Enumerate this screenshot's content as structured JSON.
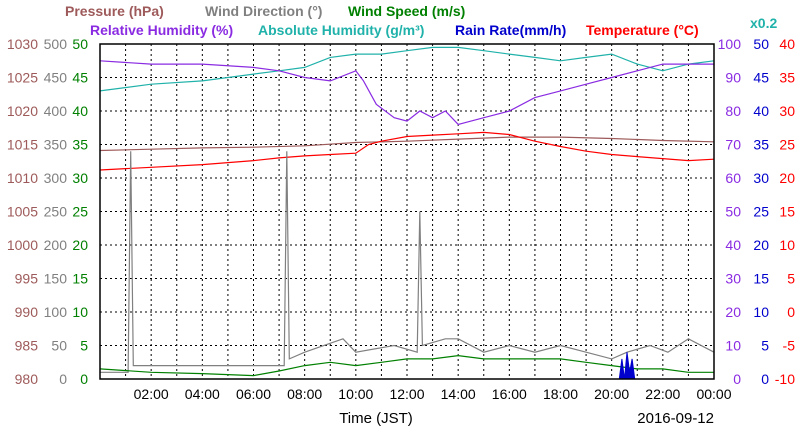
{
  "chart_data": {
    "type": "line",
    "title_rows": [
      [
        {
          "text": "Pressure (hPa)",
          "color": "#9e5a5a"
        },
        {
          "text": "Wind Direction (°)",
          "color": "#808080"
        },
        {
          "text": "Wind Speed (m/s)",
          "color": "#008000"
        }
      ],
      [
        {
          "text": "Relative Humidity (%)",
          "color": "#8a2be2"
        },
        {
          "text": "Absolute Humidity (g/m³)",
          "color": "#20b2aa"
        },
        {
          "text": "Rain Rate(mm/h)",
          "color": "#0000cc"
        },
        {
          "text": "Temperature (°C)",
          "color": "#ff0000"
        }
      ]
    ],
    "corner_note": {
      "text": "x0.2",
      "color": "#20b2aa"
    },
    "xlabel": "Time (JST)",
    "date_label": "2016-09-12",
    "x_ticks": [
      "02:00",
      "04:00",
      "06:00",
      "08:00",
      "10:00",
      "12:00",
      "14:00",
      "16:00",
      "18:00",
      "20:00",
      "22:00",
      "00:00"
    ],
    "xlim_hours": [
      0,
      24
    ],
    "left_axes": [
      {
        "name": "pressure",
        "color": "#9e5a5a",
        "range": [
          980,
          1030
        ],
        "ticks": [
          "1030",
          "1025",
          "1020",
          "1015",
          "1010",
          "1005",
          "1000",
          "995",
          "990",
          "985",
          "980"
        ]
      },
      {
        "name": "wind_direction",
        "color": "#808080",
        "range": [
          0,
          500
        ],
        "ticks": [
          "500",
          "450",
          "400",
          "350",
          "300",
          "250",
          "200",
          "150",
          "100",
          "50",
          "0"
        ]
      },
      {
        "name": "wind_speed",
        "color": "#008000",
        "range": [
          0,
          50
        ],
        "ticks": [
          "50",
          "45",
          "40",
          "35",
          "30",
          "25",
          "20",
          "15",
          "10",
          "5",
          "0"
        ]
      }
    ],
    "right_axes": [
      {
        "name": "relative_humidity",
        "color": "#8a2be2",
        "range": [
          0,
          100
        ],
        "ticks": [
          "100",
          "90",
          "80",
          "70",
          "60",
          "50",
          "40",
          "30",
          "20",
          "10",
          "0"
        ]
      },
      {
        "name": "rain_rate",
        "color": "#0000cc",
        "range": [
          0,
          50
        ],
        "ticks": [
          "50",
          "45",
          "40",
          "35",
          "30",
          "25",
          "20",
          "15",
          "10",
          "5",
          "0"
        ]
      },
      {
        "name": "temperature",
        "color": "#ff0000",
        "range": [
          -10,
          40
        ],
        "ticks": [
          "40",
          "35",
          "30",
          "25",
          "20",
          "15",
          "10",
          "5",
          "0",
          "-5",
          "-10"
        ]
      }
    ],
    "series": [
      {
        "axis": "pressure",
        "color": "#9e5a5a",
        "x": [
          0,
          2,
          4,
          6,
          8,
          10,
          12,
          14,
          16,
          18,
          20,
          22,
          24
        ],
        "y": [
          1014.1,
          1014.3,
          1014.5,
          1014.6,
          1014.8,
          1015.3,
          1015.5,
          1015.8,
          1016.1,
          1016.1,
          1015.9,
          1015.6,
          1015.4
        ]
      },
      {
        "axis": "absolute_humidity",
        "color": "#20b2aa",
        "note": "plotted on relative-humidity scale, x0.2",
        "x": [
          0,
          2,
          4,
          6,
          7,
          8,
          9,
          10,
          11,
          12,
          13,
          14,
          15,
          16,
          17,
          18,
          19,
          20,
          21,
          22,
          23,
          24
        ],
        "y": [
          86,
          88,
          89,
          91,
          92,
          93,
          96,
          97,
          97,
          98,
          99,
          99,
          98,
          97,
          96,
          95,
          96,
          97,
          94,
          92,
          94,
          95
        ]
      },
      {
        "axis": "relative_humidity",
        "color": "#8a2be2",
        "x": [
          0,
          2,
          4,
          6,
          7,
          8,
          9,
          10,
          10.3,
          10.8,
          11.5,
          12,
          12.5,
          13,
          13.5,
          14,
          15,
          16,
          17,
          18,
          19,
          20,
          21,
          22,
          23,
          24
        ],
        "y": [
          95,
          94,
          94,
          93,
          92,
          90,
          89,
          92,
          89,
          82,
          78,
          77,
          80,
          78,
          80,
          76,
          78,
          80,
          84,
          86,
          88,
          90,
          92,
          94,
          94,
          94
        ]
      },
      {
        "axis": "temperature",
        "color": "#ff0000",
        "x": [
          0,
          2,
          4,
          6,
          7,
          8,
          9,
          10,
          10.5,
          11,
          12,
          13,
          14,
          15,
          16,
          17,
          18,
          19,
          20,
          21,
          22,
          23,
          24
        ],
        "y": [
          21.2,
          21.6,
          22.0,
          22.6,
          23.0,
          23.3,
          23.5,
          23.7,
          25.0,
          25.5,
          26.2,
          26.4,
          26.6,
          26.8,
          26.5,
          25.5,
          24.7,
          24.0,
          23.5,
          23.2,
          22.9,
          22.6,
          22.8
        ]
      },
      {
        "axis": "wind_direction",
        "color": "#808080",
        "x": [
          0,
          1.1,
          1.2,
          1.3,
          2.0,
          7.2,
          7.3,
          7.4,
          8,
          9.5,
          10.0,
          11.5,
          12.4,
          12.5,
          12.6,
          13.5,
          14,
          15,
          16,
          17,
          18,
          19,
          20,
          20.6,
          21.5,
          22.2,
          23,
          24
        ],
        "y": [
          10,
          10,
          340,
          20,
          20,
          20,
          340,
          30,
          40,
          60,
          40,
          50,
          40,
          250,
          50,
          60,
          60,
          40,
          50,
          40,
          50,
          40,
          30,
          40,
          50,
          40,
          60,
          40
        ]
      },
      {
        "axis": "wind_speed",
        "color": "#008000",
        "x": [
          0,
          2,
          4,
          6,
          7,
          8,
          9,
          10,
          11,
          12,
          13,
          14,
          15,
          16,
          17,
          18,
          19,
          20,
          21,
          22,
          23,
          24
        ],
        "y": [
          1.5,
          1,
          0.8,
          0.5,
          1.2,
          2,
          2.5,
          2,
          2.5,
          3,
          3,
          3.5,
          3,
          3,
          3,
          3,
          2.5,
          2,
          1.5,
          1.5,
          1,
          1
        ]
      },
      {
        "axis": "rain_rate",
        "color": "#0000cc",
        "x": [
          20.3,
          20.4,
          20.5,
          20.6,
          20.7,
          20.8,
          20.9
        ],
        "y": [
          0,
          3,
          0,
          4,
          1,
          3,
          0
        ]
      }
    ]
  }
}
